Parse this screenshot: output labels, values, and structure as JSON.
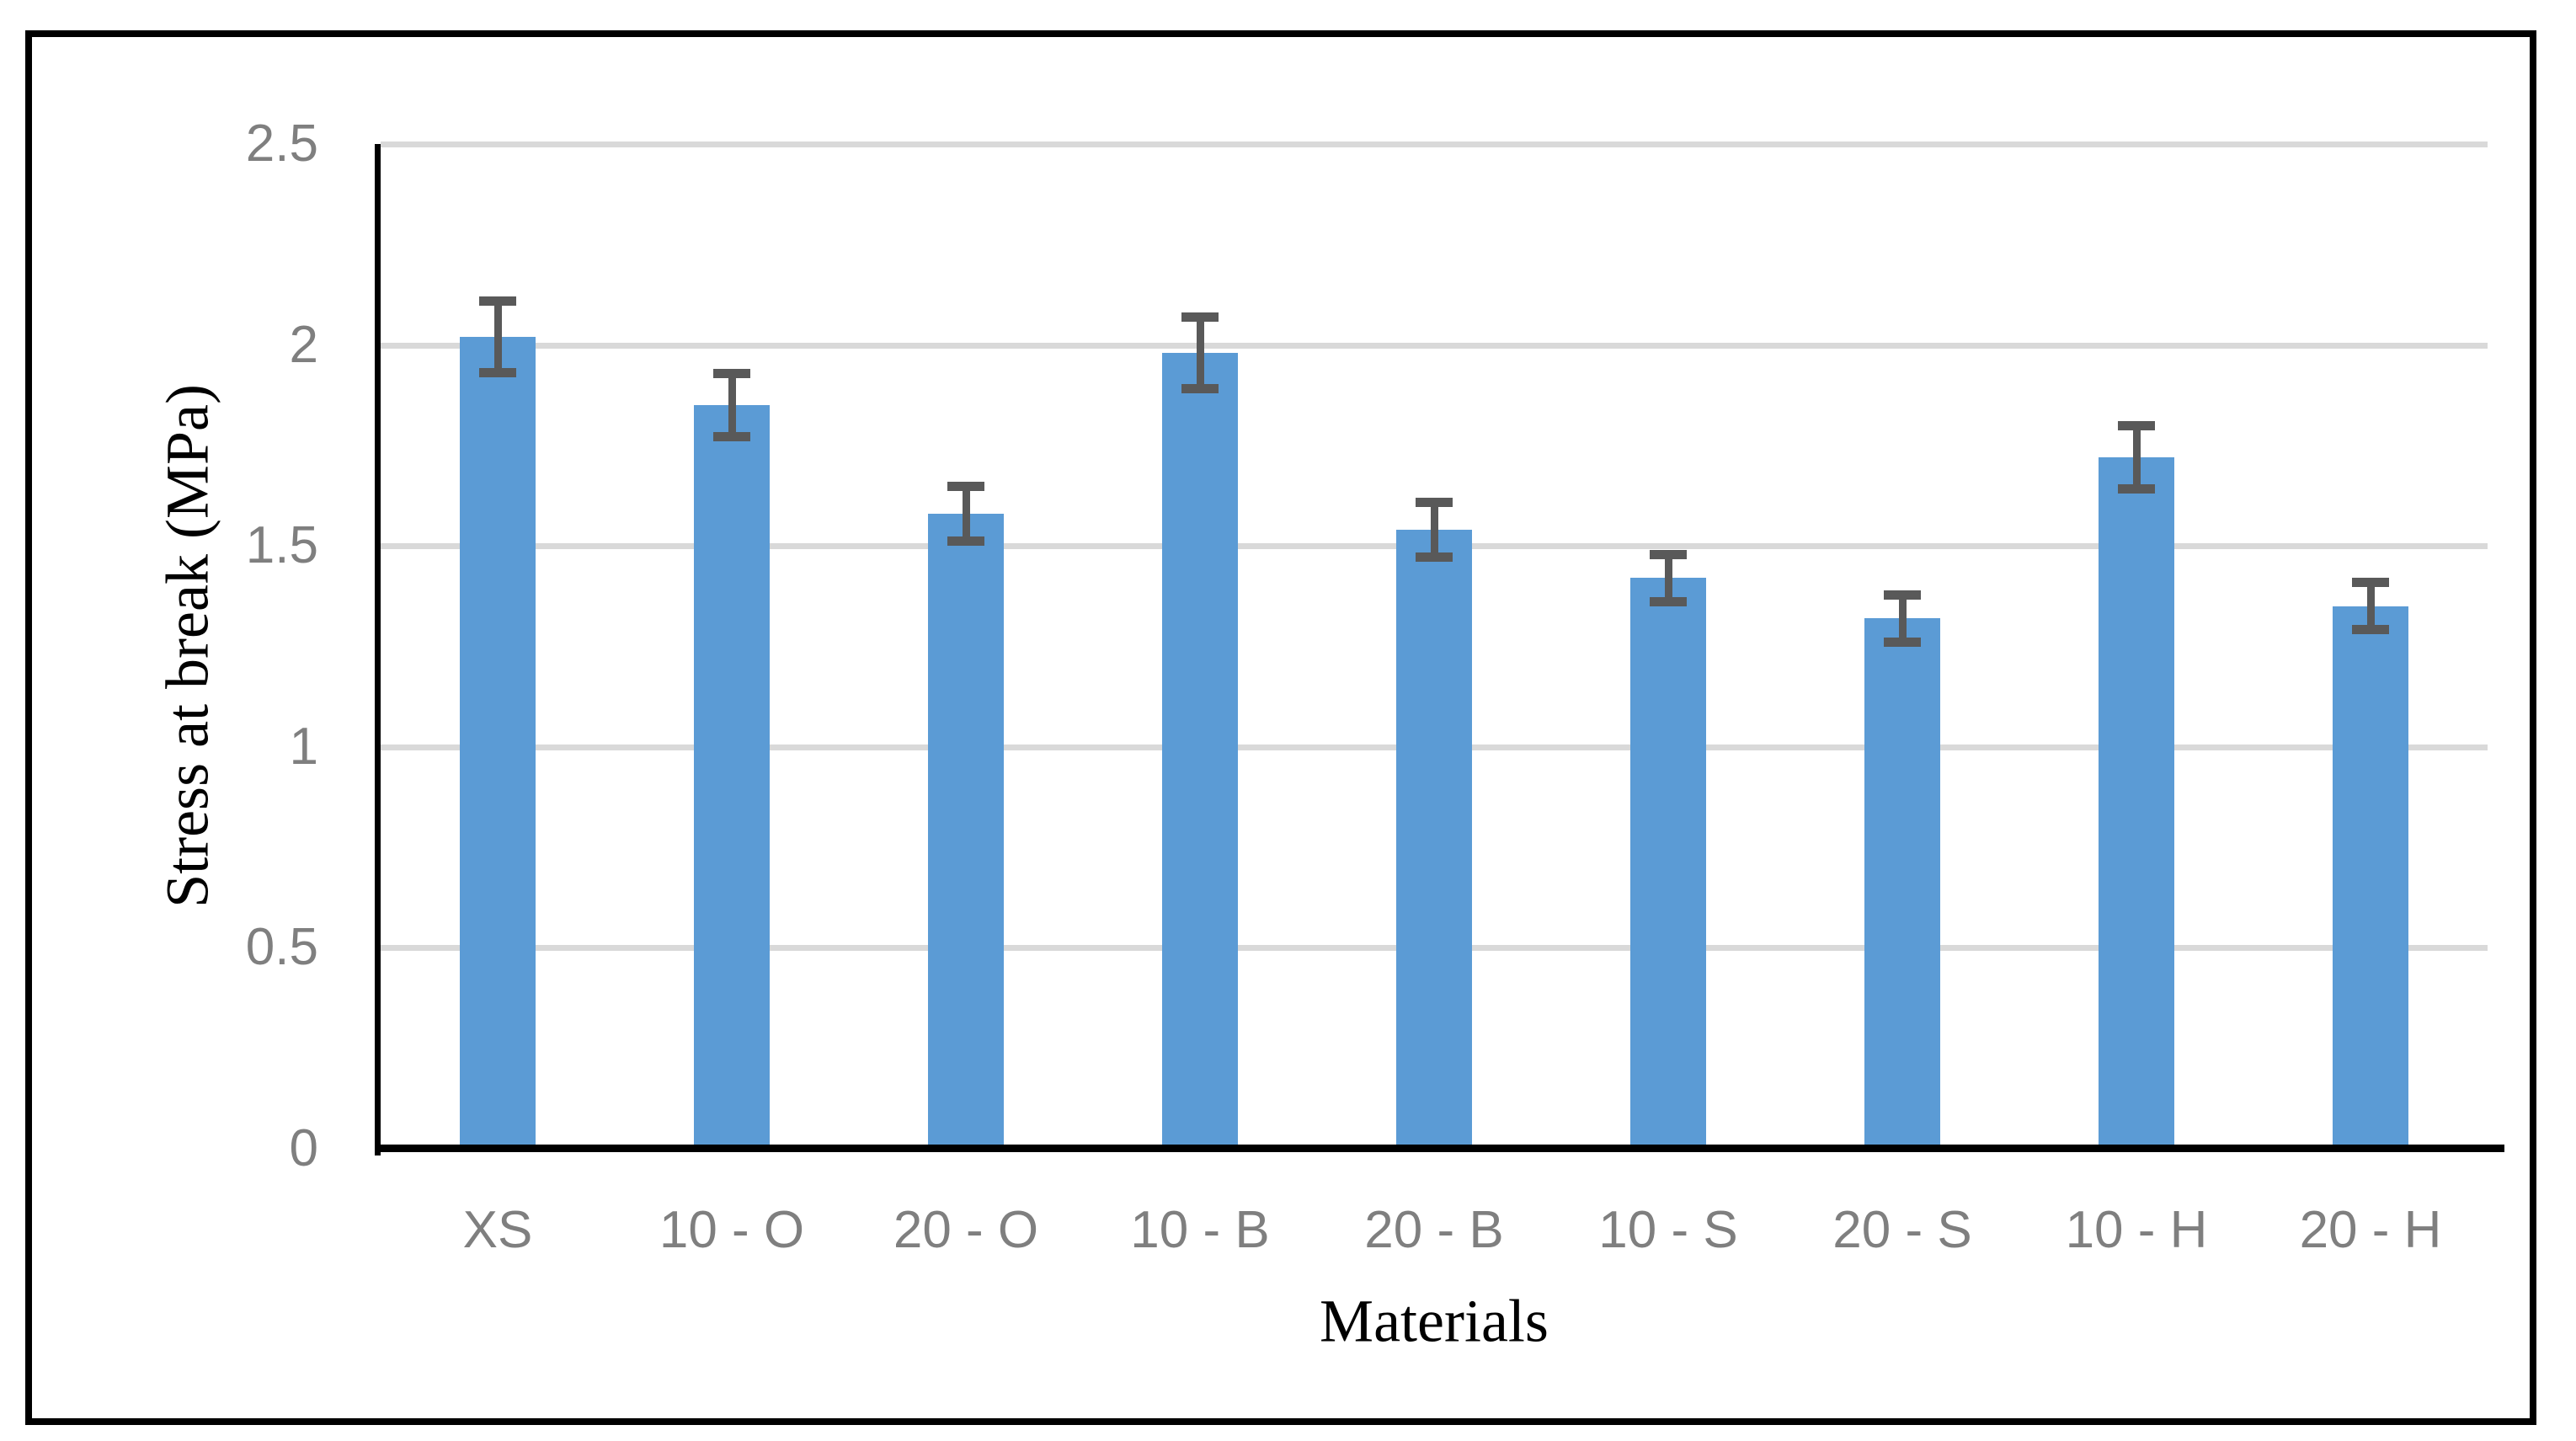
{
  "chart_data": {
    "type": "bar",
    "title": "",
    "xlabel": "Materials",
    "ylabel": "Stress at break (MPa)",
    "categories": [
      "XS",
      "10 - O",
      "20 - O",
      "10 - B",
      "20 - B",
      "10 - S",
      "20 - S",
      "10 - H",
      "20 - H"
    ],
    "values": [
      2.02,
      1.85,
      1.58,
      1.98,
      1.54,
      1.42,
      1.32,
      1.72,
      1.35
    ],
    "errors": [
      0.1,
      0.09,
      0.08,
      0.1,
      0.08,
      0.07,
      0.07,
      0.09,
      0.07
    ],
    "ylim": [
      0,
      2.5
    ],
    "ytick_labels": [
      "0",
      "0.5",
      "1",
      "1.5",
      "2",
      "2.5"
    ],
    "grid": "horizontal",
    "legend": "none",
    "colors": {
      "bar": "#5B9BD5",
      "error_bar": "#595959",
      "gridline": "#D9D9D9",
      "tick_label": "#7F7F7F",
      "axis_line": "#000000",
      "frame_border": "#000000",
      "background": "#FFFFFF"
    }
  }
}
